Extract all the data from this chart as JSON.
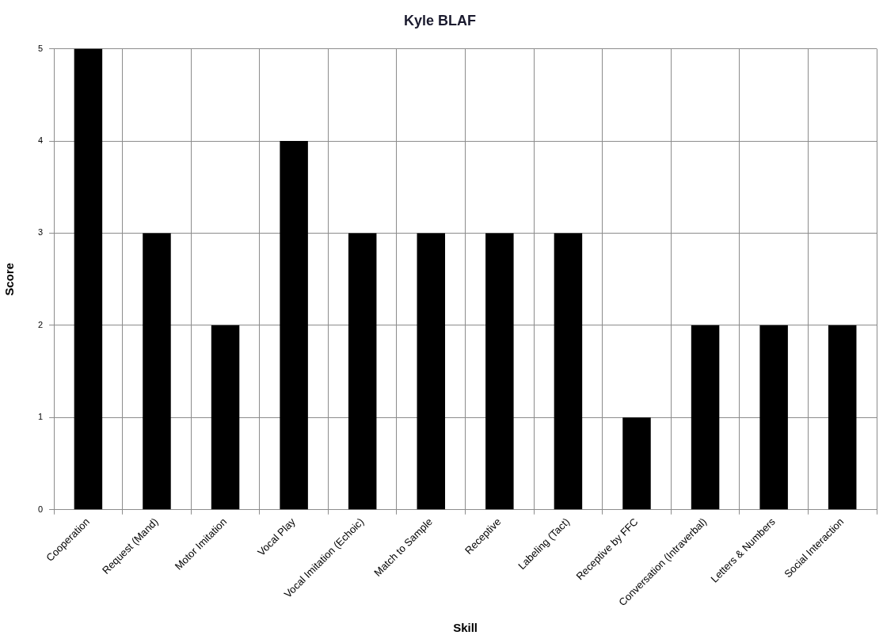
{
  "chart_data": {
    "type": "bar",
    "title": "Kyle BLAF",
    "xlabel": "Skill",
    "ylabel": "Score",
    "categories": [
      "Cooperation",
      "Request (Mand)",
      "Motor Imitation",
      "Vocal Play",
      "Vocal Imitation (Echoic)",
      "Match to Sample",
      "Receptive",
      "Labeling (Tact)",
      "Receptive by FFC",
      "Conversation (Intraverbal)",
      "Letters & Numbers",
      "Social Interaction"
    ],
    "values": [
      5,
      3,
      2,
      4,
      3,
      3,
      3,
      3,
      1,
      2,
      2,
      2
    ],
    "color": "#000000",
    "ylim": [
      0,
      5
    ],
    "yticks": [
      0,
      1,
      2,
      3,
      4,
      5
    ],
    "grid": true
  }
}
